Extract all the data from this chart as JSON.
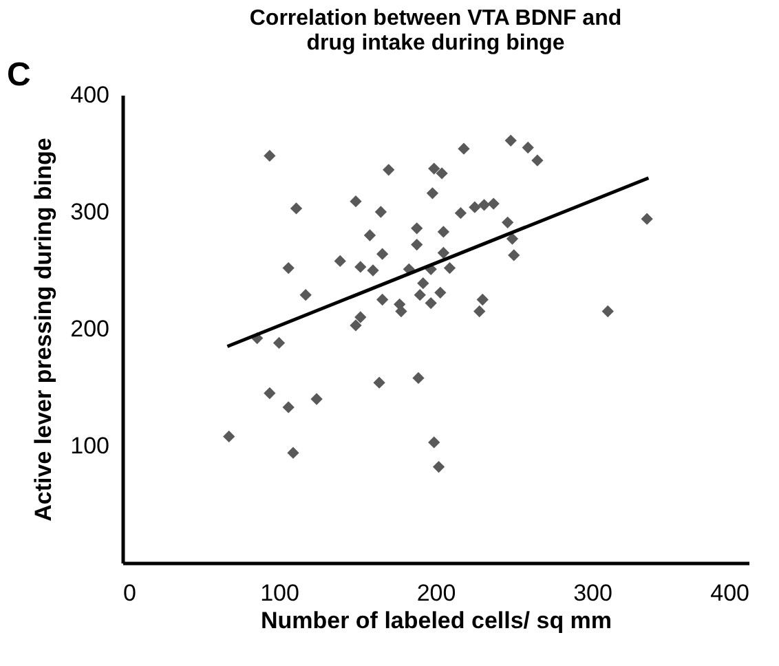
{
  "chart_data": {
    "type": "scatter",
    "title": "Correlation between VTA BDNF and\ndrug intake during binge",
    "xlabel": "Number of labeled cells/ sq mm",
    "ylabel": "Active lever pressing during binge",
    "annotations": [
      "C"
    ],
    "xlim": [
      0,
      400
    ],
    "ylim": [
      0,
      400
    ],
    "xticks": [
      0,
      100,
      200,
      300,
      400
    ],
    "yticks": [
      100,
      200,
      300,
      400
    ],
    "grid": false,
    "series": [
      {
        "marker": "diamond",
        "color": "#595959",
        "x": [
          68,
          86,
          94,
          94,
          100,
          106,
          106,
          109,
          111,
          117,
          124,
          139,
          149,
          149,
          152,
          152,
          158,
          160,
          164,
          165,
          166,
          166,
          170,
          177,
          178,
          183,
          188,
          188,
          189,
          190,
          192,
          197,
          197,
          198,
          199,
          199,
          202,
          203,
          204,
          205,
          205,
          209,
          216,
          218,
          225,
          230,
          228,
          231,
          237,
          246,
          248,
          249,
          250,
          259,
          265,
          310,
          335
        ],
        "values": [
          108,
          192,
          348,
          145,
          188,
          252,
          133,
          94,
          303,
          229,
          140,
          258,
          309,
          203,
          253,
          210,
          280,
          250,
          154,
          300,
          264,
          225,
          336,
          221,
          215,
          251,
          286,
          272,
          158,
          229,
          239,
          251,
          222,
          316,
          337,
          103,
          82,
          231,
          333,
          283,
          265,
          252,
          299,
          354,
          304,
          225,
          215,
          306,
          307,
          291,
          361,
          277,
          263,
          355,
          344,
          215,
          294
        ]
      },
      {
        "type": "line",
        "color": "#000000",
        "x": [
          67,
          336
        ],
        "values": [
          185,
          329
        ]
      }
    ]
  }
}
